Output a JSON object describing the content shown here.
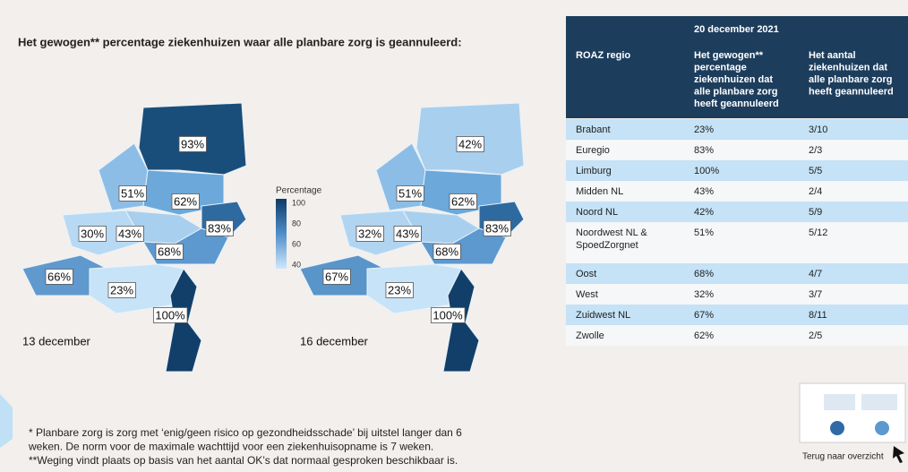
{
  "title": "Het gewogen** percentage ziekenhuizen waar alle planbare zorg is geannuleerd:",
  "maps": [
    {
      "caption": "13 december",
      "labels": [
        "93%",
        "51%",
        "62%",
        "83%",
        "30%",
        "43%",
        "68%",
        "66%",
        "23%",
        "100%"
      ]
    },
    {
      "caption": "16 december",
      "labels": [
        "42%",
        "51%",
        "62%",
        "83%",
        "32%",
        "43%",
        "68%",
        "67%",
        "23%",
        "100%"
      ]
    }
  ],
  "legend": {
    "title": "Percentage",
    "ticks": [
      "100",
      "80",
      "60",
      "40"
    ]
  },
  "table": {
    "date_header": "20 december 2021",
    "headers": [
      [
        "ROAZ regio"
      ],
      [
        "Het gewogen**",
        "percentage",
        "ziekenhuizen dat",
        "alle planbare zorg",
        "heeft geannuleerd"
      ],
      [
        "Het aantal",
        "ziekenhuizen dat",
        "alle planbare zorg",
        "heeft geannuleerd"
      ]
    ],
    "rows": [
      [
        [
          "Brabant"
        ],
        "23%",
        "3/10"
      ],
      [
        [
          "Euregio"
        ],
        "83%",
        "2/3"
      ],
      [
        [
          "Limburg"
        ],
        "100%",
        "5/5"
      ],
      [
        [
          "Midden NL"
        ],
        "43%",
        "2/4"
      ],
      [
        [
          "Noord NL"
        ],
        "42%",
        "5/9"
      ],
      [
        [
          "Noordwest NL &",
          "SpoedZorgnet"
        ],
        "51%",
        "5/12"
      ],
      [
        [
          "Oost"
        ],
        "68%",
        "4/7"
      ],
      [
        [
          "West"
        ],
        "32%",
        "3/7"
      ],
      [
        [
          "Zuidwest NL"
        ],
        "67%",
        "8/11"
      ],
      [
        [
          "Zwolle"
        ],
        "62%",
        "2/5"
      ]
    ]
  },
  "footnotes": [
    "* Planbare zorg is zorg met ‘enig/geen risico op gezondheidsschade’ bij uitstel langer dan 6",
    "weken. De norm voor de maximale wachttijd voor een ziekenhuisopname is 7 weken.",
    "**Weging vindt plaats op basis van het aantal OK’s dat normaal gesproken beschikbaar is."
  ],
  "back_link": "Terug naar overzicht"
}
